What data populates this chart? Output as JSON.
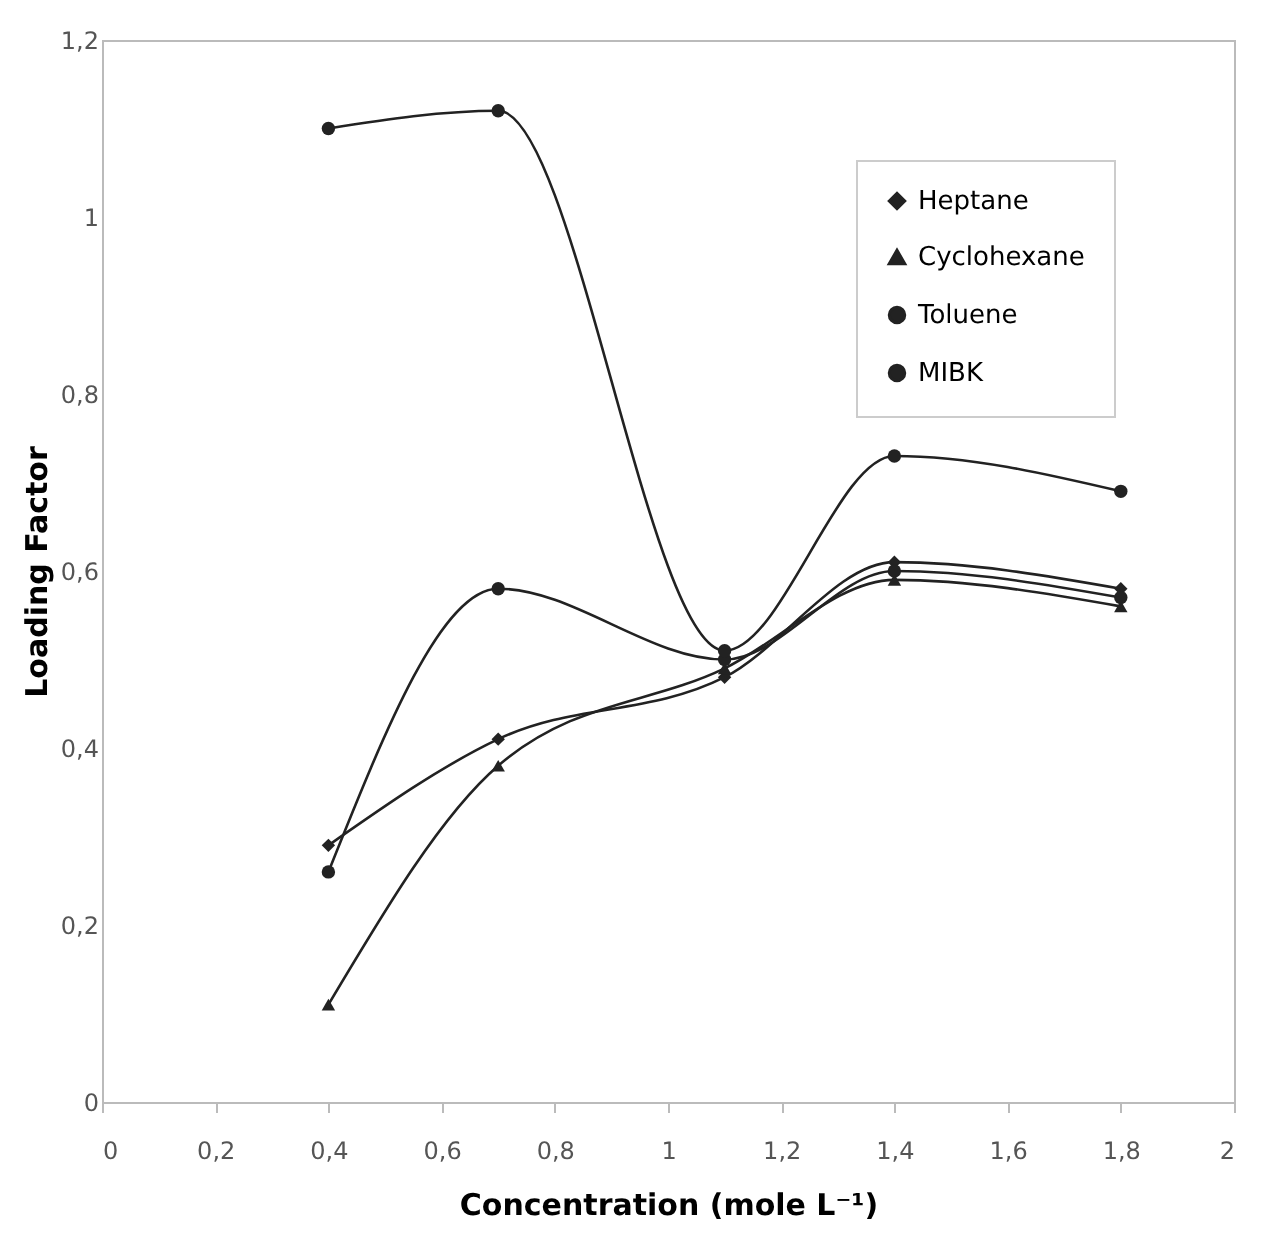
{
  "chart_data": {
    "type": "line",
    "x": [
      0.4,
      0.7,
      1.1,
      1.4,
      1.8
    ],
    "xlabel": "Concentration (mole L⁻¹)",
    "ylabel": "Loading Factor",
    "xlim": [
      0,
      2
    ],
    "ylim": [
      0,
      1.2
    ],
    "xticks": [
      0,
      {
        "value": 0.2,
        "label": "0,2"
      },
      {
        "value": 0.4,
        "label": "0,4"
      },
      {
        "value": 0.6,
        "label": "0,6"
      },
      {
        "value": 0.8,
        "label": "0,8"
      },
      1,
      {
        "value": 1.2,
        "label": "1,2"
      },
      {
        "value": 1.4,
        "label": "1,4"
      },
      {
        "value": 1.6,
        "label": "1,6"
      },
      {
        "value": 1.8,
        "label": "1,8"
      },
      2
    ],
    "yticks": [
      0,
      {
        "value": 0.2,
        "label": "0,2"
      },
      {
        "value": 0.4,
        "label": "0,4"
      },
      {
        "value": 0.6,
        "label": "0,6"
      },
      {
        "value": 0.8,
        "label": "0,8"
      },
      1,
      {
        "value": 1.2,
        "label": "1,2"
      }
    ],
    "grid": false,
    "legend": "top right",
    "series": [
      {
        "name": "Heptane",
        "color": "#222222",
        "marker": "diamond",
        "values": [
          0.29,
          0.41,
          0.48,
          0.61,
          0.58
        ]
      },
      {
        "name": "Cyclohexane",
        "color": "#222222",
        "marker": "triangle",
        "values": [
          0.11,
          0.38,
          0.49,
          0.59,
          0.56
        ]
      },
      {
        "name": "Toluene",
        "color": "#222222",
        "marker": "circle",
        "values": [
          0.26,
          0.58,
          0.5,
          0.6,
          0.57
        ]
      },
      {
        "name": "MIBK",
        "color": "#222222",
        "marker": "circle",
        "values": [
          1.1,
          1.12,
          0.51,
          0.73,
          0.69
        ]
      }
    ]
  }
}
